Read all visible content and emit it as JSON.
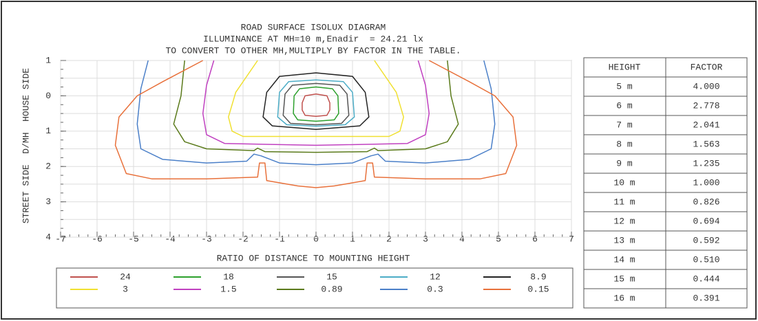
{
  "chart_data": {
    "type": "contour",
    "title": "ROAD SURFACE ISOLUX DIAGRAM",
    "subtitle": [
      "ILLUMINANCE AT MH=10 m,Enadir  = 24.21 lx",
      "TO CONVERT TO OTHER MH,MULTIPLY BY FACTOR IN THE TABLE."
    ],
    "xlabel": "RATIO OF DISTANCE TO MOUNTING HEIGHT",
    "ylabel": "STREET SIDE  D/MH  HOUSE SIDE",
    "xlim": [
      -7,
      7
    ],
    "xticks": [
      -7,
      -6,
      -5,
      -4,
      -3,
      -2,
      -1,
      0,
      1,
      2,
      3,
      4,
      5,
      6,
      7
    ],
    "ylim": [
      -1,
      4
    ],
    "yticks": [
      {
        "value": -1,
        "label": "1"
      },
      0,
      1,
      2,
      3,
      4
    ],
    "grid": true,
    "series": [
      {
        "name": "24",
        "color": "#c0504d"
      },
      {
        "name": "18",
        "color": "#2ca02c"
      },
      {
        "name": "15",
        "color": "#555555"
      },
      {
        "name": "12",
        "color": "#4bacc6"
      },
      {
        "name": "8.9",
        "color": "#222222"
      },
      {
        "name": "3",
        "color": "#f0e030"
      },
      {
        "name": "1.5",
        "color": "#c040c0"
      },
      {
        "name": "0.89",
        "color": "#5a7a1a"
      },
      {
        "name": "0.3",
        "color": "#4a7fc8"
      },
      {
        "name": "0.15",
        "color": "#e8703a"
      }
    ]
  },
  "table": {
    "header": [
      "HEIGHT",
      "FACTOR"
    ],
    "rows": [
      [
        "5 m",
        "4.000"
      ],
      [
        "6 m",
        "2.778"
      ],
      [
        "7 m",
        "2.041"
      ],
      [
        "8 m",
        "1.563"
      ],
      [
        "9 m",
        "1.235"
      ],
      [
        "10 m",
        "1.000"
      ],
      [
        "11 m",
        "0.826"
      ],
      [
        "12 m",
        "0.694"
      ],
      [
        "13 m",
        "0.592"
      ],
      [
        "14 m",
        "0.510"
      ],
      [
        "15 m",
        "0.444"
      ],
      [
        "16 m",
        "0.391"
      ]
    ]
  }
}
